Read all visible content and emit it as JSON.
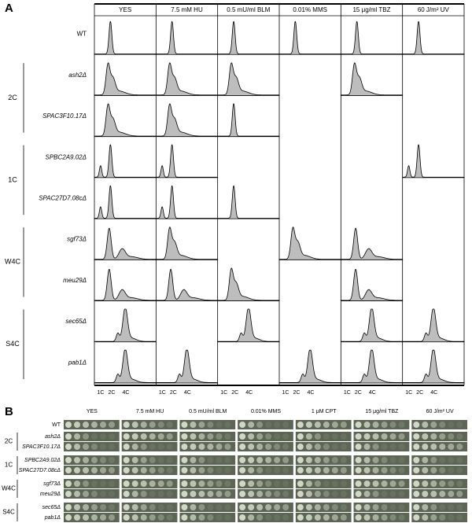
{
  "panel_a": {
    "label": "A",
    "columns": [
      "YES",
      "7.5 mM HU",
      "0.5 mU/ml BLM",
      "0.01% MMS",
      "15 μg/ml TBZ",
      "60 J/m² UV"
    ],
    "rows": [
      "WT",
      "ash2Δ",
      "SPAC3F10.17Δ",
      "SPBC2A9.02Δ",
      "SPAC27D7.08cΔ",
      "sgf73Δ",
      "meu29Δ",
      "sec65Δ",
      "pab1Δ"
    ],
    "groups": [
      "2C",
      "1C",
      "W4C",
      "S4C"
    ],
    "axis_labels": [
      "1C",
      "2C",
      "4C"
    ]
  },
  "panel_b": {
    "label": "B",
    "columns": [
      "YES",
      "7.5 mM HU",
      "0.5 mU/ml BLM",
      "0.01% MMS",
      "1 μM CPT",
      "15 μg/ml TBZ",
      "60 J/m² UV"
    ],
    "rows": [
      "WT",
      "ash2Δ",
      "SPAC3F10.17Δ",
      "SPBC2A9.02Δ",
      "SPAC27D7.08cΔ",
      "sgf73Δ",
      "meu29Δ",
      "sec65Δ",
      "pab1Δ"
    ],
    "groups": [
      "2C",
      "1C",
      "W4C",
      "S4C"
    ]
  }
}
